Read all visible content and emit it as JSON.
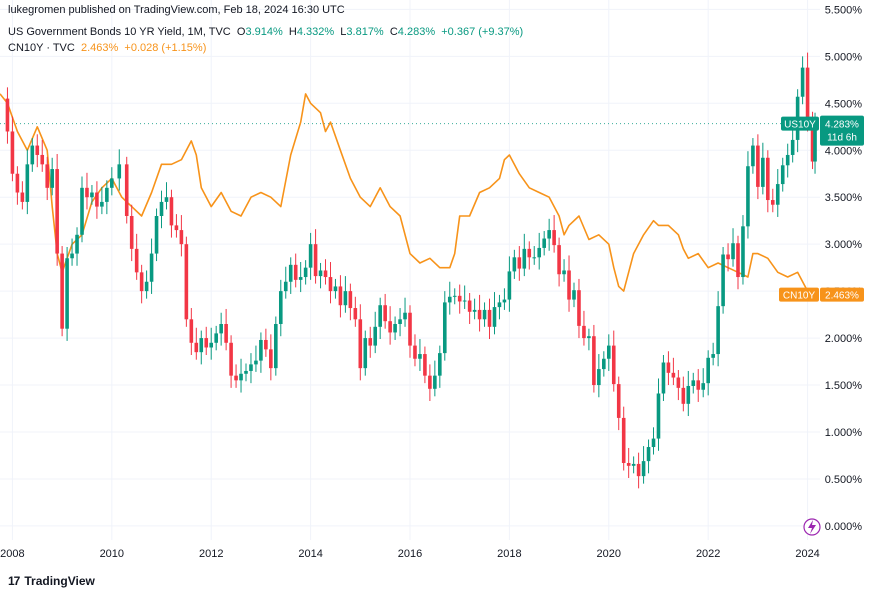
{
  "header": {
    "published": "lukegromen published on TradingView.com, Feb 18, 2024 16:30 UTC",
    "us_name": "US Government Bonds 10 YR Yield, 1M, TVC",
    "us_open_label": "O",
    "us_open": "3.914%",
    "us_high_label": "H",
    "us_high": "4.332%",
    "us_low_label": "L",
    "us_low": "3.817%",
    "us_close_label": "C",
    "us_close": "4.283%",
    "us_change": "+0.367 (+9.37%)",
    "cn_name": "CN10Y · TVC",
    "cn_value": "2.463%",
    "cn_change": "+0.028 (+1.15%)"
  },
  "footer": {
    "brand": "TradingView",
    "logo_glyph": "17"
  },
  "colors": {
    "up": "#089981",
    "down": "#f23645",
    "cn": "#f7931a",
    "grid": "#f0f3fa",
    "text": "#131722"
  },
  "chart_data": {
    "type": "candlestick+line",
    "title": "US Government Bonds 10 YR Yield, 1M, TVC",
    "x_ticks": [
      "2008",
      "2010",
      "2012",
      "2014",
      "2016",
      "2018",
      "2020",
      "2022",
      "2024"
    ],
    "y_ticks": [
      "0.000%",
      "0.500%",
      "1.000%",
      "1.500%",
      "2.000%",
      "2.500%",
      "3.000%",
      "3.500%",
      "4.000%",
      "4.500%",
      "5.000%",
      "5.500%"
    ],
    "ylim": [
      -0.15,
      5.6
    ],
    "xlim": [
      2007.75,
      2024.25
    ],
    "us_last_value": 4.283,
    "cn_last_value": 2.463,
    "badges": {
      "us": {
        "symbol": "US10Y",
        "value": "4.283%",
        "countdown": "11d 6h"
      },
      "cn": {
        "symbol": "CN10Y",
        "value": "2.463%"
      }
    },
    "us10y_points": [
      [
        2007.75,
        4.55
      ],
      [
        2007.9,
        4.2
      ],
      [
        2008.0,
        3.75
      ],
      [
        2008.1,
        3.55
      ],
      [
        2008.2,
        3.45
      ],
      [
        2008.3,
        3.85
      ],
      [
        2008.4,
        4.05
      ],
      [
        2008.5,
        3.95
      ],
      [
        2008.6,
        3.85
      ],
      [
        2008.7,
        3.6
      ],
      [
        2008.8,
        3.8
      ],
      [
        2008.9,
        2.9
      ],
      [
        2009.0,
        2.1
      ],
      [
        2009.1,
        2.85
      ],
      [
        2009.2,
        2.9
      ],
      [
        2009.3,
        3.1
      ],
      [
        2009.4,
        3.6
      ],
      [
        2009.5,
        3.5
      ],
      [
        2009.6,
        3.55
      ],
      [
        2009.7,
        3.4
      ],
      [
        2009.8,
        3.45
      ],
      [
        2009.9,
        3.6
      ],
      [
        2010.0,
        3.7
      ],
      [
        2010.15,
        3.85
      ],
      [
        2010.3,
        3.3
      ],
      [
        2010.4,
        2.95
      ],
      [
        2010.5,
        2.7
      ],
      [
        2010.6,
        2.5
      ],
      [
        2010.7,
        2.6
      ],
      [
        2010.8,
        2.9
      ],
      [
        2010.9,
        3.3
      ],
      [
        2011.0,
        3.45
      ],
      [
        2011.1,
        3.5
      ],
      [
        2011.2,
        3.2
      ],
      [
        2011.3,
        3.15
      ],
      [
        2011.4,
        3.0
      ],
      [
        2011.5,
        2.2
      ],
      [
        2011.6,
        1.95
      ],
      [
        2011.7,
        1.85
      ],
      [
        2011.8,
        2.0
      ],
      [
        2011.9,
        1.9
      ],
      [
        2012.0,
        1.95
      ],
      [
        2012.1,
        2.05
      ],
      [
        2012.2,
        2.15
      ],
      [
        2012.3,
        1.95
      ],
      [
        2012.4,
        1.6
      ],
      [
        2012.5,
        1.55
      ],
      [
        2012.6,
        1.62
      ],
      [
        2012.7,
        1.65
      ],
      [
        2012.8,
        1.72
      ],
      [
        2012.9,
        1.76
      ],
      [
        2013.0,
        1.98
      ],
      [
        2013.1,
        1.88
      ],
      [
        2013.2,
        1.68
      ],
      [
        2013.3,
        2.15
      ],
      [
        2013.4,
        2.5
      ],
      [
        2013.5,
        2.6
      ],
      [
        2013.6,
        2.78
      ],
      [
        2013.7,
        2.62
      ],
      [
        2013.8,
        2.65
      ],
      [
        2013.9,
        2.75
      ],
      [
        2014.0,
        3.0
      ],
      [
        2014.1,
        2.66
      ],
      [
        2014.2,
        2.72
      ],
      [
        2014.3,
        2.65
      ],
      [
        2014.4,
        2.5
      ],
      [
        2014.5,
        2.55
      ],
      [
        2014.6,
        2.35
      ],
      [
        2014.7,
        2.5
      ],
      [
        2014.8,
        2.32
      ],
      [
        2014.9,
        2.2
      ],
      [
        2015.0,
        1.68
      ],
      [
        2015.1,
        2.0
      ],
      [
        2015.2,
        1.92
      ],
      [
        2015.3,
        2.12
      ],
      [
        2015.4,
        2.35
      ],
      [
        2015.5,
        2.18
      ],
      [
        2015.6,
        2.06
      ],
      [
        2015.7,
        2.15
      ],
      [
        2015.8,
        2.2
      ],
      [
        2015.9,
        2.27
      ],
      [
        2016.0,
        1.92
      ],
      [
        2016.1,
        1.78
      ],
      [
        2016.2,
        1.83
      ],
      [
        2016.3,
        1.6
      ],
      [
        2016.4,
        1.46
      ],
      [
        2016.5,
        1.6
      ],
      [
        2016.6,
        1.84
      ],
      [
        2016.7,
        2.38
      ],
      [
        2016.8,
        2.44
      ],
      [
        2016.9,
        2.45
      ],
      [
        2017.0,
        2.39
      ],
      [
        2017.1,
        2.4
      ],
      [
        2017.2,
        2.28
      ],
      [
        2017.3,
        2.3
      ],
      [
        2017.4,
        2.2
      ],
      [
        2017.5,
        2.3
      ],
      [
        2017.6,
        2.12
      ],
      [
        2017.7,
        2.33
      ],
      [
        2017.8,
        2.38
      ],
      [
        2017.9,
        2.41
      ],
      [
        2018.0,
        2.71
      ],
      [
        2018.1,
        2.86
      ],
      [
        2018.2,
        2.74
      ],
      [
        2018.3,
        2.95
      ],
      [
        2018.4,
        2.86
      ],
      [
        2018.5,
        2.86
      ],
      [
        2018.6,
        2.96
      ],
      [
        2018.7,
        3.06
      ],
      [
        2018.8,
        3.15
      ],
      [
        2018.9,
        2.99
      ],
      [
        2019.0,
        2.68
      ],
      [
        2019.1,
        2.72
      ],
      [
        2019.2,
        2.41
      ],
      [
        2019.3,
        2.51
      ],
      [
        2019.4,
        2.13
      ],
      [
        2019.5,
        2.0
      ],
      [
        2019.6,
        2.02
      ],
      [
        2019.7,
        1.5
      ],
      [
        2019.8,
        1.67
      ],
      [
        2019.9,
        1.78
      ],
      [
        2020.0,
        1.92
      ],
      [
        2020.1,
        1.51
      ],
      [
        2020.2,
        1.15
      ],
      [
        2020.3,
        0.67
      ],
      [
        2020.4,
        0.64
      ],
      [
        2020.5,
        0.66
      ],
      [
        2020.6,
        0.53
      ],
      [
        2020.7,
        0.69
      ],
      [
        2020.8,
        0.84
      ],
      [
        2020.9,
        0.93
      ],
      [
        2021.0,
        1.41
      ],
      [
        2021.1,
        1.74
      ],
      [
        2021.2,
        1.63
      ],
      [
        2021.3,
        1.58
      ],
      [
        2021.4,
        1.47
      ],
      [
        2021.5,
        1.3
      ],
      [
        2021.6,
        1.49
      ],
      [
        2021.7,
        1.55
      ],
      [
        2021.8,
        1.45
      ],
      [
        2021.9,
        1.52
      ],
      [
        2022.0,
        1.79
      ],
      [
        2022.1,
        1.83
      ],
      [
        2022.2,
        2.34
      ],
      [
        2022.3,
        2.89
      ],
      [
        2022.4,
        2.84
      ],
      [
        2022.5,
        3.01
      ],
      [
        2022.6,
        2.65
      ],
      [
        2022.7,
        3.19
      ],
      [
        2022.8,
        3.83
      ],
      [
        2022.9,
        4.05
      ],
      [
        2023.0,
        3.61
      ],
      [
        2023.1,
        3.92
      ],
      [
        2023.2,
        3.47
      ],
      [
        2023.3,
        3.42
      ],
      [
        2023.4,
        3.64
      ],
      [
        2023.5,
        3.84
      ],
      [
        2023.6,
        3.95
      ],
      [
        2023.7,
        4.11
      ],
      [
        2023.8,
        4.57
      ],
      [
        2023.9,
        4.88
      ],
      [
        2024.0,
        4.33
      ],
      [
        2024.1,
        3.88
      ],
      [
        2024.15,
        4.28
      ]
    ],
    "cn10y_points": [
      [
        2007.75,
        4.6
      ],
      [
        2007.9,
        4.5
      ],
      [
        2008.1,
        4.2
      ],
      [
        2008.3,
        4.0
      ],
      [
        2008.5,
        4.25
      ],
      [
        2008.7,
        4.0
      ],
      [
        2008.8,
        3.4
      ],
      [
        2008.9,
        2.9
      ],
      [
        2009.0,
        2.7
      ],
      [
        2009.2,
        3.0
      ],
      [
        2009.4,
        3.1
      ],
      [
        2009.6,
        3.45
      ],
      [
        2009.8,
        3.6
      ],
      [
        2010.0,
        3.7
      ],
      [
        2010.2,
        3.5
      ],
      [
        2010.4,
        3.4
      ],
      [
        2010.6,
        3.3
      ],
      [
        2010.8,
        3.55
      ],
      [
        2011.0,
        3.85
      ],
      [
        2011.2,
        3.85
      ],
      [
        2011.4,
        3.9
      ],
      [
        2011.6,
        4.1
      ],
      [
        2011.7,
        3.95
      ],
      [
        2011.8,
        3.6
      ],
      [
        2012.0,
        3.4
      ],
      [
        2012.2,
        3.55
      ],
      [
        2012.4,
        3.35
      ],
      [
        2012.6,
        3.3
      ],
      [
        2012.8,
        3.5
      ],
      [
        2013.0,
        3.55
      ],
      [
        2013.2,
        3.5
      ],
      [
        2013.4,
        3.4
      ],
      [
        2013.6,
        3.95
      ],
      [
        2013.8,
        4.3
      ],
      [
        2013.9,
        4.6
      ],
      [
        2014.0,
        4.5
      ],
      [
        2014.2,
        4.4
      ],
      [
        2014.3,
        4.2
      ],
      [
        2014.4,
        4.3
      ],
      [
        2014.6,
        4.0
      ],
      [
        2014.8,
        3.7
      ],
      [
        2015.0,
        3.5
      ],
      [
        2015.2,
        3.4
      ],
      [
        2015.4,
        3.6
      ],
      [
        2015.6,
        3.4
      ],
      [
        2015.8,
        3.3
      ],
      [
        2016.0,
        2.9
      ],
      [
        2016.2,
        2.8
      ],
      [
        2016.4,
        2.85
      ],
      [
        2016.6,
        2.75
      ],
      [
        2016.8,
        2.75
      ],
      [
        2016.9,
        2.9
      ],
      [
        2017.0,
        3.3
      ],
      [
        2017.2,
        3.3
      ],
      [
        2017.4,
        3.55
      ],
      [
        2017.6,
        3.6
      ],
      [
        2017.8,
        3.7
      ],
      [
        2017.9,
        3.9
      ],
      [
        2018.0,
        3.95
      ],
      [
        2018.2,
        3.75
      ],
      [
        2018.4,
        3.6
      ],
      [
        2018.6,
        3.55
      ],
      [
        2018.8,
        3.5
      ],
      [
        2019.0,
        3.3
      ],
      [
        2019.1,
        3.1
      ],
      [
        2019.2,
        3.2
      ],
      [
        2019.4,
        3.3
      ],
      [
        2019.6,
        3.05
      ],
      [
        2019.8,
        3.1
      ],
      [
        2020.0,
        3.0
      ],
      [
        2020.1,
        2.75
      ],
      [
        2020.2,
        2.55
      ],
      [
        2020.3,
        2.5
      ],
      [
        2020.5,
        2.9
      ],
      [
        2020.7,
        3.1
      ],
      [
        2020.9,
        3.25
      ],
      [
        2021.0,
        3.2
      ],
      [
        2021.2,
        3.2
      ],
      [
        2021.4,
        3.1
      ],
      [
        2021.5,
        2.95
      ],
      [
        2021.6,
        2.85
      ],
      [
        2021.8,
        2.9
      ],
      [
        2022.0,
        2.75
      ],
      [
        2022.2,
        2.8
      ],
      [
        2022.4,
        2.75
      ],
      [
        2022.6,
        2.7
      ],
      [
        2022.8,
        2.65
      ],
      [
        2022.9,
        2.9
      ],
      [
        2023.0,
        2.9
      ],
      [
        2023.2,
        2.85
      ],
      [
        2023.4,
        2.7
      ],
      [
        2023.6,
        2.65
      ],
      [
        2023.8,
        2.7
      ],
      [
        2024.0,
        2.5
      ],
      [
        2024.15,
        2.46
      ]
    ]
  }
}
